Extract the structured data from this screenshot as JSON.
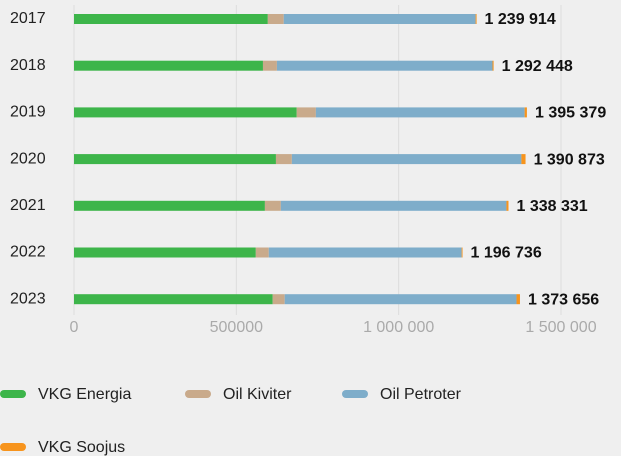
{
  "chart_data": {
    "type": "stacked-bar-horizontal",
    "categories": [
      "2017",
      "2018",
      "2019",
      "2020",
      "2021",
      "2022",
      "2023"
    ],
    "series": [
      {
        "name": "VKG Energia",
        "color": "#3db54a",
        "values": [
          597000,
          582000,
          686000,
          622000,
          588000,
          560000,
          612000
        ]
      },
      {
        "name": "Oil Kiviter",
        "color": "#c9aa8b",
        "values": [
          49000,
          43000,
          59000,
          49000,
          49000,
          40000,
          37000
        ]
      },
      {
        "name": "Oil Petroter",
        "color": "#7eadca",
        "values": [
          591000,
          664000,
          643000,
          707000,
          695000,
          594000,
          714000
        ]
      },
      {
        "name": "VKG Soojus",
        "color": "#f7941d",
        "values": [
          3000,
          3400,
          7000,
          12800,
          6300,
          2700,
          10600
        ]
      }
    ],
    "totals": [
      1239914,
      1292448,
      1395379,
      1390873,
      1338331,
      1196736,
      1373656
    ],
    "total_labels": [
      "1 239 914",
      "1 292 448",
      "1 395 379",
      "1 390 873",
      "1 338 331",
      "1 196 736",
      "1 373 656"
    ],
    "xlim": [
      0,
      1500000
    ],
    "xticks": [
      0,
      500000,
      {
        "value": 1000000,
        "label": "1 000 000"
      },
      {
        "value": 1500000,
        "label": "1 500 000"
      }
    ],
    "grid": true
  }
}
